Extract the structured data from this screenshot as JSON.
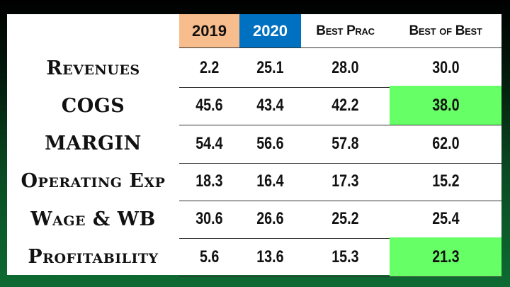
{
  "colors": {
    "col_2019": "#f8bd8c",
    "col_2020": "#0070c0",
    "highlight": "#66ff66"
  },
  "headers": [
    "2019",
    "2020",
    "Best Prac",
    "Best of Best"
  ],
  "rows": [
    {
      "label": "Revenues",
      "values": [
        "2.2",
        "25.1",
        "28.0",
        "30.0"
      ],
      "highlight_best": false
    },
    {
      "label": "COGS",
      "values": [
        "45.6",
        "43.4",
        "42.2",
        "38.0"
      ],
      "highlight_best": true
    },
    {
      "label": "MARGIN",
      "values": [
        "54.4",
        "56.6",
        "57.8",
        "62.0"
      ],
      "highlight_best": false
    },
    {
      "label": "Operating Exp",
      "values": [
        "18.3",
        "16.4",
        "17.3",
        "15.2"
      ],
      "highlight_best": false
    },
    {
      "label": "Wage & WB",
      "values": [
        "30.6",
        "26.6",
        "25.2",
        "25.4"
      ],
      "highlight_best": false
    },
    {
      "label": "Profitability",
      "values": [
        "5.6",
        "13.6",
        "15.3",
        "21.3"
      ],
      "highlight_best": true
    }
  ]
}
